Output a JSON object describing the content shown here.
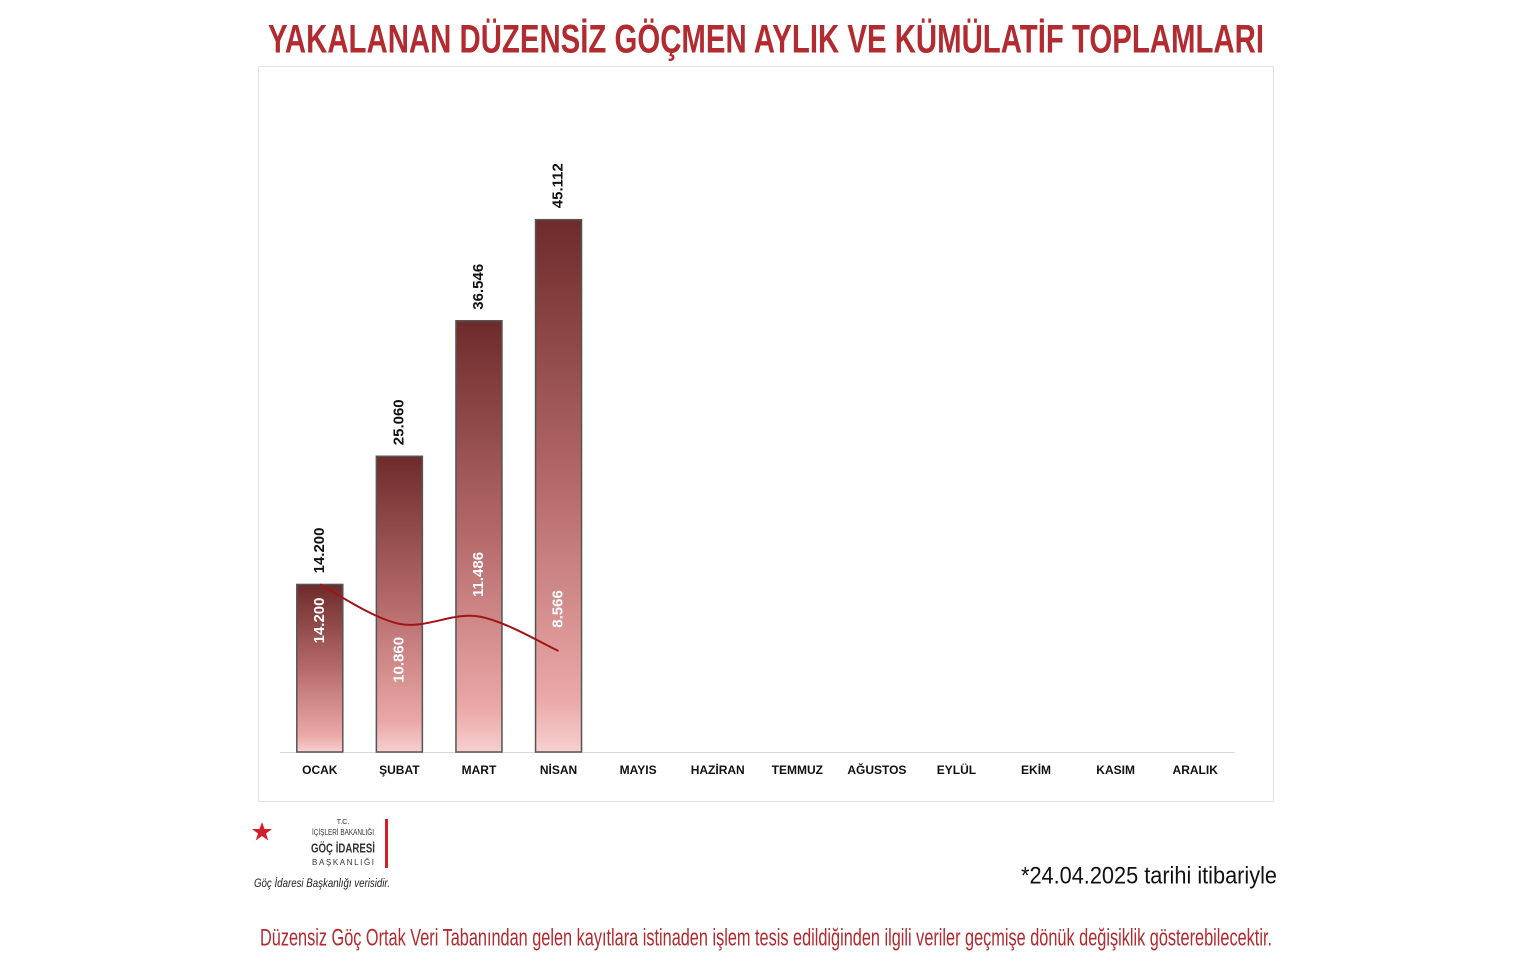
{
  "chart_data": {
    "type": "bar",
    "title": "YAKALANAN DÜZENSİZ GÖÇMEN AYLIK VE KÜMÜLATİF TOPLAMLARI",
    "categories": [
      "OCAK",
      "ŞUBAT",
      "MART",
      "NİSAN",
      "MAYIS",
      "HAZİRAN",
      "TEMMUZ",
      "AĞUSTOS",
      "EYLÜL",
      "EKİM",
      "KASIM",
      "ARALIK"
    ],
    "series": [
      {
        "type": "bar",
        "color": "#7a3333",
        "values": [
          14200,
          25060,
          36546,
          45112,
          null,
          null,
          null,
          null,
          null,
          null,
          null,
          null
        ],
        "value_labels": [
          "14.200",
          "25.060",
          "36.546",
          "45.112",
          null,
          null,
          null,
          null,
          null,
          null,
          null,
          null
        ]
      },
      {
        "type": "line",
        "color": "#a01515",
        "values": [
          14200,
          10860,
          11486,
          8566,
          null,
          null,
          null,
          null,
          null,
          null,
          null,
          null
        ],
        "value_labels": [
          "14.200",
          "10.860",
          "11.486",
          "8.566",
          null,
          null,
          null,
          null,
          null,
          null,
          null,
          null
        ]
      }
    ],
    "ylim": [
      0,
      50000
    ],
    "grid": false,
    "logo": {
      "line1": "T.C.",
      "line2": "İÇİŞLERİ BAKANLIĞI",
      "line3": "GÖÇ İDARESİ",
      "line4": "BAŞKANLIĞI"
    },
    "source": "Göç İdaresi Başkanlığı verisidir.",
    "date_note": "*24.04.2025 tarihi itibariyle",
    "footnote": "Düzensiz Göç Ortak Veri Tabanından gelen kayıtlara istinaden işlem tesis edildiğinden ilgili veriler geçmişe dönük değişiklik gösterebilecektir."
  }
}
